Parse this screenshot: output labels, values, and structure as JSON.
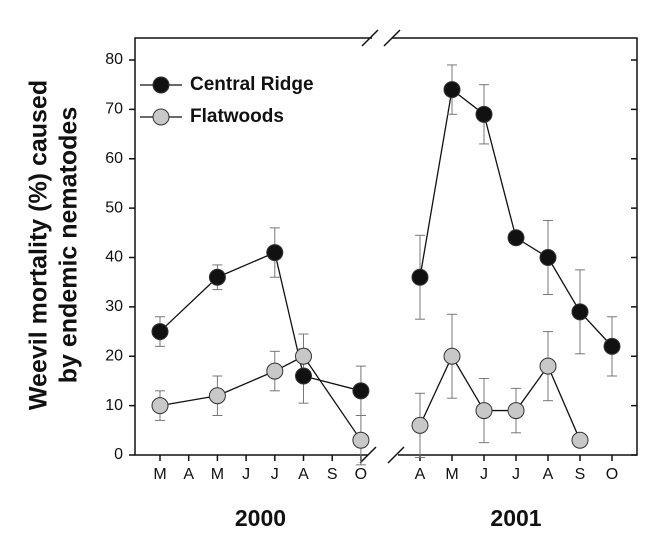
{
  "chart_data": {
    "type": "line",
    "ylabel": [
      "Weevil mortality (%) caused",
      "by endemic nematodes"
    ],
    "periods": [
      {
        "label": "2000",
        "categories": [
          "M",
          "A",
          "M",
          "J",
          "J",
          "A",
          "S",
          "O"
        ]
      },
      {
        "label": "2001",
        "categories": [
          "A",
          "M",
          "J",
          "J",
          "A",
          "S",
          "O"
        ]
      }
    ],
    "series": [
      {
        "name": "Central Ridge",
        "color": "#111111",
        "values": [
          [
            25,
            null,
            36,
            null,
            41,
            16,
            null,
            13
          ],
          [
            36,
            74,
            69,
            44,
            40,
            29,
            22
          ]
        ],
        "errors": [
          [
            3,
            null,
            2.5,
            null,
            5,
            5.5,
            null,
            5
          ],
          [
            8.5,
            5,
            6,
            0,
            7.5,
            8.5,
            6
          ]
        ]
      },
      {
        "name": "Flatwoods",
        "color": "#c8c8c8",
        "values": [
          [
            10,
            null,
            12,
            null,
            17,
            20,
            null,
            3
          ],
          [
            6,
            20,
            9,
            9,
            18,
            3,
            null
          ]
        ],
        "errors": [
          [
            3,
            null,
            4,
            null,
            4,
            4.5,
            null,
            5
          ],
          [
            6.5,
            8.5,
            6.5,
            4.5,
            7,
            0,
            null
          ]
        ]
      }
    ],
    "ylim": [
      0,
      80
    ],
    "yticks": [
      0,
      10,
      20,
      30,
      40,
      50,
      60,
      70,
      80
    ],
    "legend": "upper-left"
  }
}
